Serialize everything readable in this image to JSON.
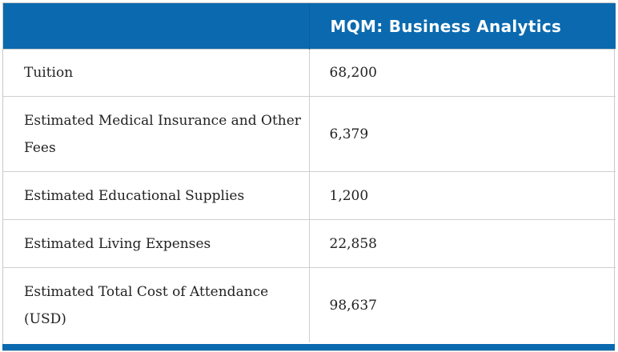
{
  "table": {
    "header": {
      "col1": "",
      "col2": "MQM: Business Analytics"
    },
    "rows": [
      {
        "label": "Tuition",
        "value": "68,200"
      },
      {
        "label": "Estimated Medical Insurance and Other Fees",
        "value": "6,379"
      },
      {
        "label": "Estimated Educational Supplies",
        "value": "1,200"
      },
      {
        "label": "Estimated Living Expenses",
        "value": "22,858"
      },
      {
        "label": "Estimated Total Cost of Attendance (USD)",
        "value": "98,637"
      }
    ]
  },
  "colors": {
    "header_bg": "#0b6aaf",
    "header_text": "#ffffff",
    "body_text": "#222222",
    "border": "#cfcfcf"
  }
}
